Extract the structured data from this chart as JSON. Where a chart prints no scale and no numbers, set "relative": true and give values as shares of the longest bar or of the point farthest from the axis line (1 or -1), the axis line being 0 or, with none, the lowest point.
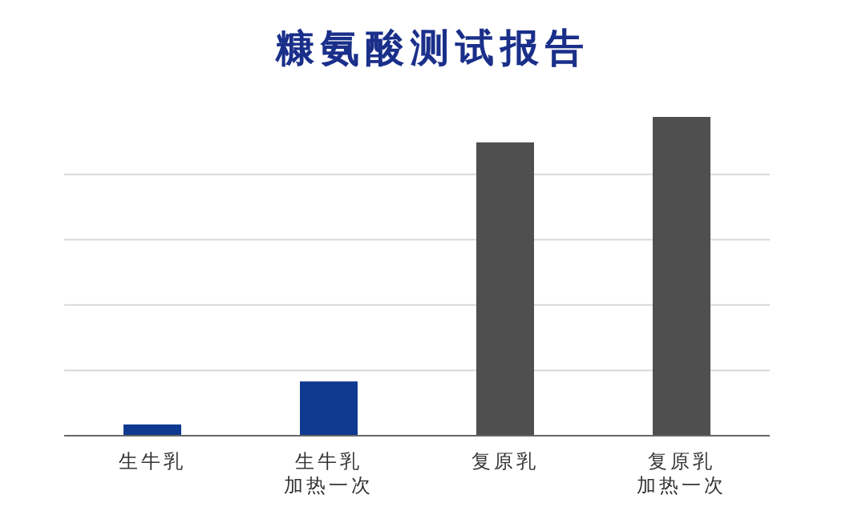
{
  "chart_data": {
    "type": "bar",
    "title": "糠氨酸测试报告",
    "relative": true,
    "categories": [
      "生牛乳",
      "生牛乳加热一次",
      "复原乳",
      "复原乳加热一次"
    ],
    "values": [
      0.035,
      0.17,
      0.92,
      1
    ],
    "colors": [
      "#103a8f",
      "#103a8f",
      "#4f4f4f",
      "#4f4f4f"
    ],
    "grid": "y"
  }
}
